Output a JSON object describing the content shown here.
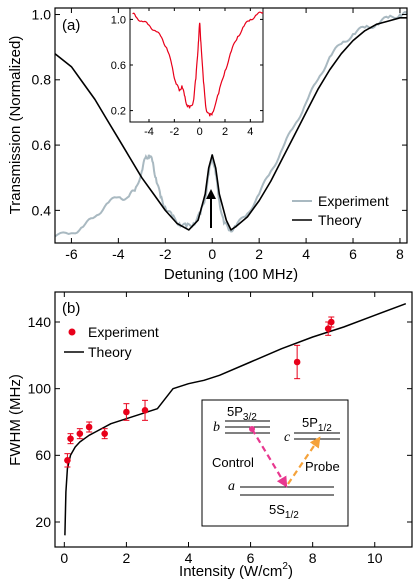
{
  "chart_data": [
    {
      "type": "line",
      "panel_label": "(a)",
      "xlabel": "Detuning (100 MHz)",
      "ylabel": "Transmission (Normalized)",
      "xlim": [
        -6.7,
        8.3
      ],
      "ylim": [
        0.3,
        1.02
      ],
      "xticks": [
        -6,
        -4,
        -2,
        0,
        2,
        4,
        6,
        8
      ],
      "xtick_labels": [
        "-6",
        "-4",
        "-2",
        "0",
        "2",
        "4",
        "6",
        "8"
      ],
      "yticks": [
        0.4,
        0.6,
        0.8,
        1.0
      ],
      "ytick_labels": [
        "0.4",
        "0.6",
        "0.8",
        "1.0"
      ],
      "legend": {
        "position": "bottom-right",
        "entries": [
          "Experiment",
          "Theory"
        ]
      },
      "series": [
        {
          "name": "Experiment",
          "color": "#a9b9c1",
          "x": [
            -6.7,
            -6.0,
            -5.5,
            -5.0,
            -4.5,
            -4.0,
            -3.6,
            -3.3,
            -3.0,
            -2.85,
            -2.7,
            -2.55,
            -2.4,
            -2.2,
            -2.0,
            -1.7,
            -1.4,
            -1.1,
            -0.8,
            -0.5,
            -0.3,
            -0.15,
            0.0,
            0.15,
            0.3,
            0.5,
            0.75,
            1.0,
            1.5,
            2.0,
            2.5,
            3.0,
            3.5,
            4.0,
            4.5,
            5.0,
            5.5,
            6.0,
            6.5,
            7.0,
            7.5,
            8.0,
            8.3
          ],
          "y": [
            0.32,
            0.33,
            0.35,
            0.38,
            0.42,
            0.44,
            0.44,
            0.46,
            0.52,
            0.56,
            0.57,
            0.55,
            0.5,
            0.44,
            0.41,
            0.38,
            0.36,
            0.35,
            0.36,
            0.39,
            0.44,
            0.51,
            0.57,
            0.51,
            0.43,
            0.36,
            0.34,
            0.35,
            0.39,
            0.45,
            0.52,
            0.59,
            0.66,
            0.73,
            0.8,
            0.87,
            0.91,
            0.94,
            0.96,
            0.97,
            0.99,
            1.0,
            1.0
          ]
        },
        {
          "name": "Theory",
          "color": "#000000",
          "x": [
            -6.7,
            -6.0,
            -5.5,
            -5.0,
            -4.5,
            -4.0,
            -3.5,
            -3.0,
            -2.5,
            -2.0,
            -1.5,
            -1.0,
            -0.6,
            -0.3,
            -0.15,
            0.0,
            0.15,
            0.3,
            0.6,
            0.8,
            1.0,
            1.5,
            2.0,
            2.5,
            3.0,
            3.5,
            4.0,
            4.5,
            5.0,
            5.5,
            6.0,
            6.5,
            7.0,
            7.5,
            8.0,
            8.3
          ],
          "y": [
            0.88,
            0.84,
            0.79,
            0.74,
            0.68,
            0.62,
            0.56,
            0.5,
            0.45,
            0.4,
            0.36,
            0.34,
            0.37,
            0.45,
            0.53,
            0.57,
            0.53,
            0.45,
            0.37,
            0.34,
            0.35,
            0.38,
            0.43,
            0.49,
            0.56,
            0.63,
            0.7,
            0.77,
            0.83,
            0.88,
            0.92,
            0.95,
            0.97,
            0.98,
            0.99,
            0.99
          ]
        }
      ],
      "annotations": [
        "arrow at detuning 0 pointing to central peak"
      ]
    },
    {
      "type": "line",
      "role": "inset",
      "xlim": [
        -5.5,
        5.0
      ],
      "ylim": [
        0.1,
        1.1
      ],
      "xticks": [
        -4,
        -2,
        0,
        2,
        4
      ],
      "xtick_labels": [
        "-4",
        "-2",
        "0",
        "2",
        "4"
      ],
      "yticks": [
        0.2,
        0.6,
        1.0
      ],
      "ytick_labels": [
        "0.2",
        "0.6",
        "1.0"
      ],
      "series": [
        {
          "color": "#e8001a",
          "x": [
            -5.3,
            -5.0,
            -4.5,
            -4.0,
            -3.5,
            -3.0,
            -2.6,
            -2.2,
            -1.9,
            -1.6,
            -1.4,
            -1.2,
            -1.0,
            -0.8,
            -0.5,
            -0.3,
            -0.1,
            0.0,
            0.1,
            0.3,
            0.5,
            0.8,
            1.0,
            1.5,
            2.0,
            2.5,
            3.0,
            3.5,
            4.0,
            4.5,
            5.0
          ],
          "y": [
            1.05,
            1.02,
            0.98,
            0.95,
            0.9,
            0.84,
            0.75,
            0.6,
            0.45,
            0.37,
            0.42,
            0.33,
            0.25,
            0.22,
            0.28,
            0.48,
            0.8,
            0.97,
            0.8,
            0.45,
            0.22,
            0.15,
            0.18,
            0.35,
            0.55,
            0.72,
            0.85,
            0.94,
            1.0,
            1.04,
            1.06
          ]
        }
      ]
    },
    {
      "type": "scatter",
      "panel_label": "(b)",
      "xlabel": "Intensity (W/cm²)",
      "xlabel_main": "Intensity (W/cm",
      "xlabel_sup": "2",
      "xlabel_close": ")",
      "ylabel": "FWHM (MHz)",
      "xlim": [
        -0.3,
        11.2
      ],
      "ylim": [
        5,
        158
      ],
      "xticks": [
        0,
        2,
        4,
        6,
        8,
        10
      ],
      "xtick_labels": [
        "0",
        "2",
        "4",
        "6",
        "8",
        "10"
      ],
      "yticks": [
        20,
        60,
        100,
        140
      ],
      "ytick_labels": [
        "20",
        "60",
        "100",
        "140"
      ],
      "legend": {
        "position": "top-left",
        "entries": [
          "Experiment",
          "Theory"
        ]
      },
      "series": [
        {
          "name": "Experiment",
          "color": "#e8001a",
          "x": [
            0.1,
            0.2,
            0.5,
            0.8,
            1.3,
            2.0,
            2.6,
            7.5,
            8.5,
            8.6
          ],
          "y": [
            57,
            70,
            73,
            77,
            73,
            86,
            87,
            116,
            136,
            140
          ],
          "err": [
            4,
            3,
            3,
            3,
            3,
            5,
            6,
            10,
            4,
            3
          ]
        },
        {
          "name": "Theory",
          "color": "#000000",
          "x": [
            0.02,
            0.05,
            0.1,
            0.2,
            0.35,
            0.5,
            0.8,
            1.0,
            1.5,
            2.0,
            2.5,
            3.0,
            3.5,
            4.0,
            4.5,
            5.0,
            6.0,
            7.0,
            8.0,
            9.0,
            10.0,
            11.0
          ],
          "y": [
            12,
            38,
            52,
            60,
            65,
            68,
            72,
            74,
            79,
            82,
            85,
            88,
            100,
            103,
            105,
            108,
            116,
            124,
            131,
            137,
            144,
            151
          ]
        }
      ]
    }
  ],
  "energy_diagram": {
    "levels": [
      {
        "letter": "b",
        "sym": "5P",
        "sub": "3/2"
      },
      {
        "letter": "c",
        "sym": "5P",
        "sub": "1/2"
      },
      {
        "letter": "a",
        "sym": "5S",
        "sub": "1/2"
      }
    ],
    "transitions": [
      {
        "label": "Control",
        "color": "#e8388f"
      },
      {
        "label": "Probe",
        "color": "#f5a23a"
      }
    ]
  }
}
